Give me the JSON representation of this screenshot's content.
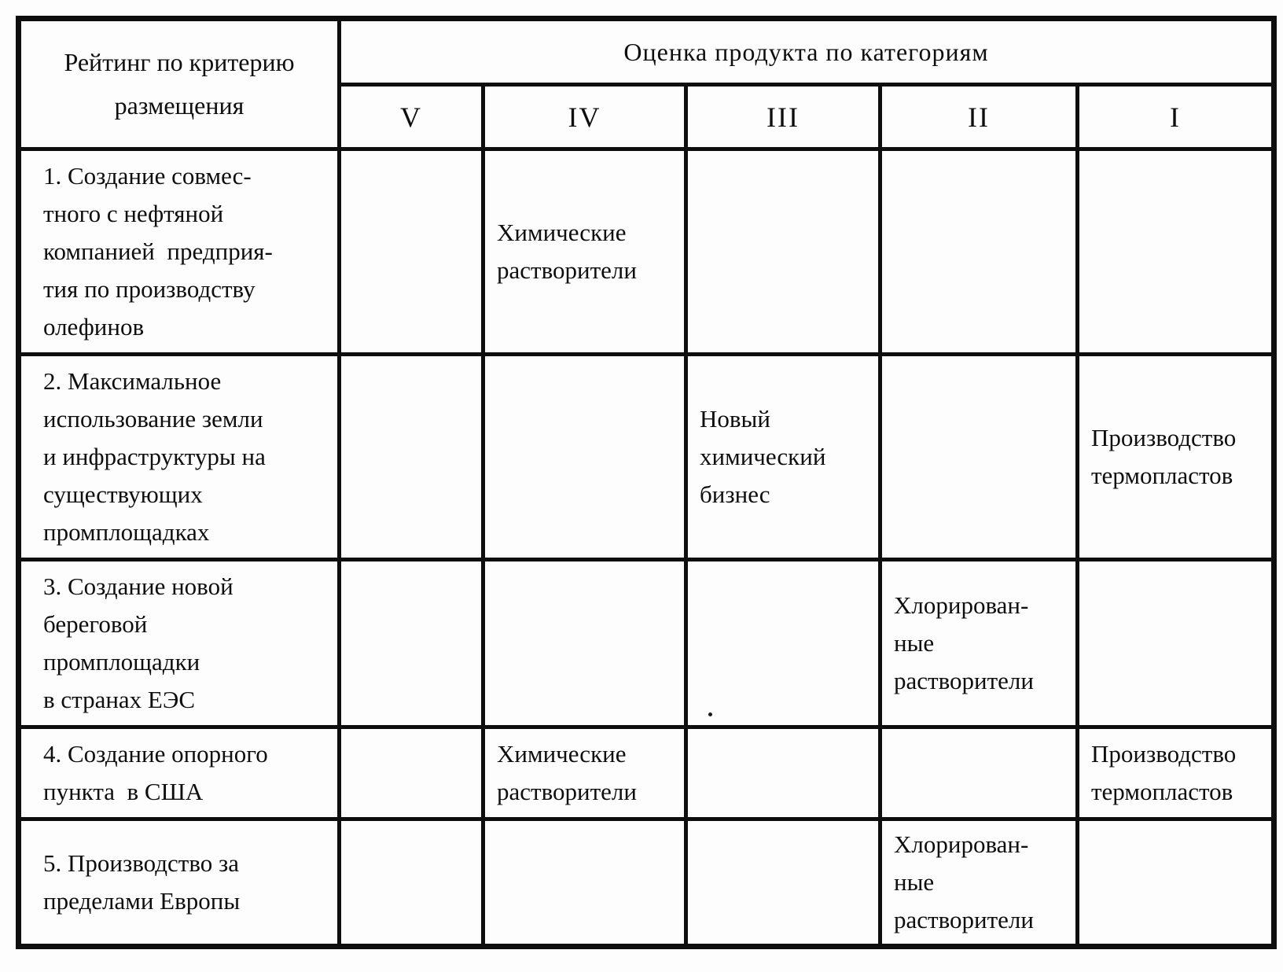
{
  "page": {
    "paper_color": "#fdfdfd",
    "ink_color": "#0e0e0e"
  },
  "table": {
    "header": {
      "criteria_label": "Рейтинг по критерию\nразмещения",
      "group_label": "Оценка продукта по категориям",
      "categories": [
        "V",
        "IV",
        "III",
        "II",
        "I"
      ]
    },
    "rows": [
      {
        "criteria": "1. Создание совмес-\nтного с нефтяной\nкомпанией  предприя-\nтия по производству\nолефинов",
        "cells": [
          "",
          "Химические\nрастворители",
          "",
          "",
          ""
        ]
      },
      {
        "criteria": "2. Максимальное\nиспользование земли\nи инфраструктуры на\nсуществующих\nпромплощадках",
        "cells": [
          "",
          "",
          "Новый\nхимический\nбизнес",
          "",
          "Производство\nтермопластов"
        ]
      },
      {
        "criteria": "3. Создание новой\nбереговой\nпромплощадки\nв странах ЕЭС",
        "cells": [
          "",
          "",
          "",
          "Хлорирован-\nные\nрастворители",
          ""
        ]
      },
      {
        "criteria": "4. Создание опорного\nпункта  в США",
        "cells": [
          "",
          "Химические\nрастворители",
          "",
          "",
          "Производство\nтермопластов"
        ]
      },
      {
        "criteria": "5. Производство за\nпределами Европы",
        "cells": [
          "",
          "",
          "",
          "Хлорирован-\nные\nрастворители",
          ""
        ]
      }
    ]
  }
}
